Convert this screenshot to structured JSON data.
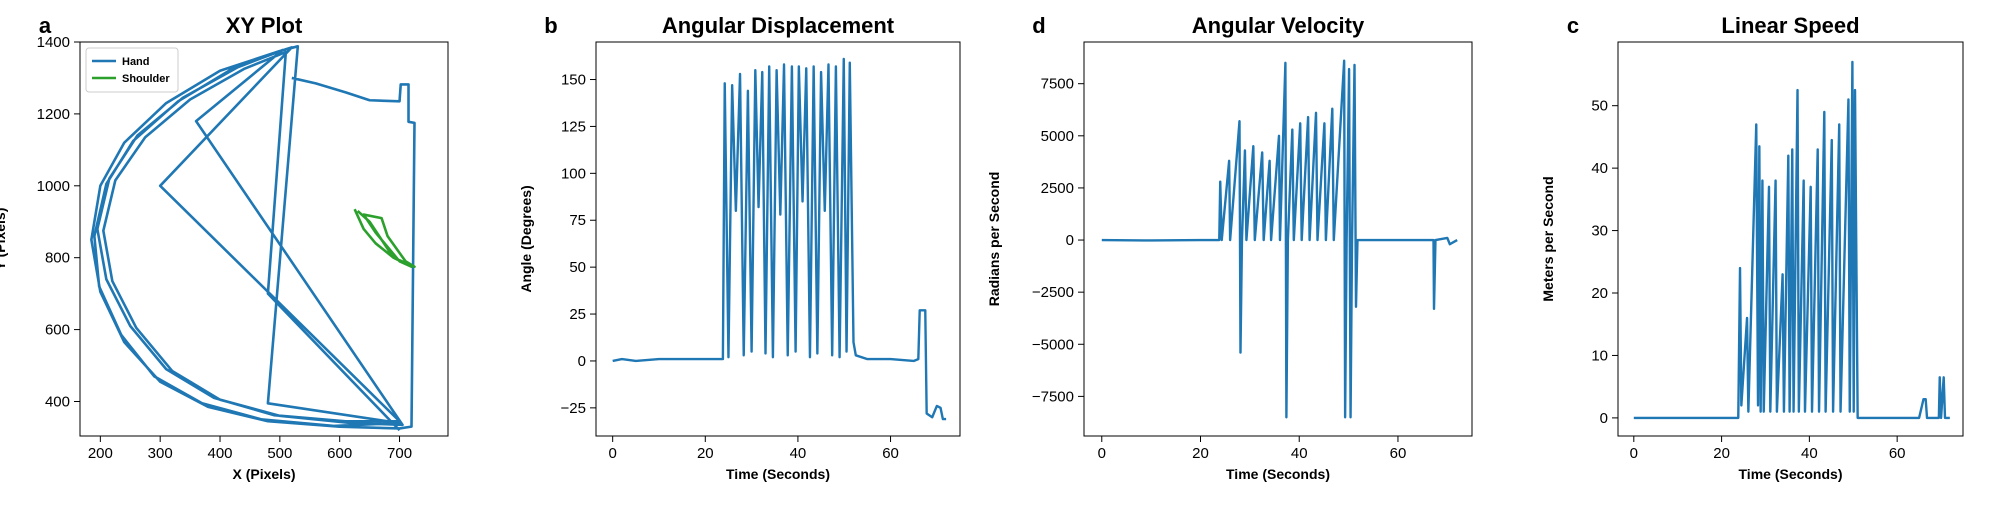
{
  "chart_data": [
    {
      "type": "line",
      "panel_label": "a",
      "title": "XY Plot",
      "x_label": "X (Pixels)",
      "y_label": "Y (Pixels)",
      "xlim": [
        166,
        781
      ],
      "ylim": [
        304,
        1400
      ],
      "xticks": [
        200,
        300,
        400,
        500,
        600,
        700
      ],
      "yticks": [
        400,
        600,
        800,
        1000,
        1200,
        1400
      ],
      "legend": "upper left",
      "series": [
        {
          "name": "Hand",
          "color": "#1f77b4",
          "x": [
            520,
            560,
            610,
            650,
            700,
            702,
            715,
            715,
            725,
            720,
            700,
            600,
            480,
            380,
            300,
            240,
            200,
            185,
            200,
            240,
            310,
            400,
            500,
            530,
            480,
            700,
            590,
            470,
            370,
            290,
            235,
            198,
            190,
            210,
            255,
            330,
            420,
            510,
            520,
            300,
            700,
            610,
            490,
            390,
            310,
            250,
            210,
            195,
            215,
            262,
            338,
            430,
            505,
            360,
            705,
            620,
            500,
            400,
            320,
            260,
            220,
            205,
            225,
            275,
            350,
            440,
            510,
            480,
            700
          ],
          "values": [
            1300,
            1285,
            1260,
            1238,
            1235,
            1282,
            1282,
            1178,
            1175,
            330,
            325,
            330,
            345,
            385,
            455,
            565,
            705,
            850,
            1000,
            1120,
            1230,
            1320,
            1375,
            1388,
            395,
            340,
            332,
            350,
            395,
            470,
            585,
            720,
            860,
            1005,
            1125,
            1235,
            1325,
            1380,
            1385,
            1000,
            345,
            345,
            362,
            410,
            490,
            610,
            740,
            880,
            1020,
            1140,
            1245,
            1330,
            1378,
            1180,
            335,
            340,
            360,
            405,
            485,
            605,
            735,
            875,
            1015,
            1135,
            1240,
            1325,
            1372,
            700,
            320
          ]
        },
        {
          "name": "Shoulder",
          "color": "#2ca02c",
          "x": [
            625,
            640,
            660,
            690,
            720,
            700,
            660,
            640,
            670,
            680,
            710,
            725,
            690,
            650,
            630
          ],
          "values": [
            935,
            880,
            840,
            800,
            775,
            790,
            870,
            920,
            910,
            860,
            790,
            775,
            800,
            900,
            930
          ]
        }
      ]
    },
    {
      "type": "line",
      "panel_label": "b",
      "title": "Angular Displacement",
      "x_label": "Time (Seconds)",
      "y_label": "Angle (Degrees)",
      "xlim": [
        -3.6,
        75
      ],
      "ylim": [
        -40,
        170
      ],
      "xticks": [
        0,
        20,
        40,
        60
      ],
      "yticks": [
        {
          "value": -25,
          "label": "−25"
        },
        0,
        25,
        50,
        75,
        100,
        125,
        150
      ],
      "color": "#1f77b4",
      "x": [
        0,
        2,
        5,
        10,
        15,
        20,
        23.8,
        24.2,
        25,
        25.8,
        26.6,
        27.5,
        28.3,
        29.2,
        30,
        30.8,
        31.5,
        32.3,
        33,
        33.8,
        34.6,
        35.4,
        36.2,
        37,
        37.8,
        38.7,
        39.5,
        40.2,
        41,
        41.8,
        42.6,
        43.4,
        44.2,
        45,
        45.8,
        46.6,
        47.4,
        48.2,
        49,
        49.9,
        50.5,
        51.2,
        52,
        52.5,
        55,
        60,
        65,
        66,
        66.3,
        67.5,
        67.8,
        69,
        70,
        70.8,
        71.3,
        72
      ],
      "values": [
        0,
        1,
        0,
        1,
        1,
        1,
        1,
        148,
        2,
        147,
        80,
        153,
        3,
        144,
        5,
        155,
        82,
        154,
        4,
        157,
        2,
        155,
        78,
        158,
        3,
        157,
        5,
        157,
        85,
        156,
        2,
        157,
        4,
        154,
        80,
        158,
        3,
        157,
        2,
        161,
        5,
        159,
        10,
        3,
        1,
        1,
        0,
        1,
        27,
        27,
        -28,
        -30,
        -24,
        -25,
        -31,
        -31
      ]
    },
    {
      "type": "line",
      "panel_label": "d",
      "title": "Angular Velocity",
      "x_label": "Time (Seconds)",
      "y_label": "Radians per Second",
      "xlim": [
        -3.6,
        75
      ],
      "ylim": [
        -9400,
        9500
      ],
      "xticks": [
        0,
        20,
        40,
        60
      ],
      "yticks": [
        {
          "value": -7500,
          "label": "−7500"
        },
        {
          "value": -5000,
          "label": "−5000"
        },
        {
          "value": -2500,
          "label": "−2500"
        },
        0,
        2500,
        5000,
        7500
      ],
      "color": "#1f77b4",
      "x": [
        0,
        10,
        20,
        23.8,
        24,
        24.3,
        25.8,
        26,
        27.9,
        28.1,
        28.4,
        29,
        29.3,
        30.7,
        31,
        32.5,
        32.8,
        34,
        34.3,
        35.9,
        36.1,
        37.2,
        37.4,
        37.7,
        38.6,
        38.9,
        40.2,
        40.5,
        41.8,
        42.1,
        43.4,
        43.7,
        45.1,
        45.4,
        46.7,
        47,
        49.1,
        49.3,
        49.6,
        50.1,
        50.4,
        50.7,
        51.2,
        51.5,
        51.8,
        55,
        60,
        66,
        67.2,
        67.3,
        67.6,
        70,
        70.5,
        72
      ],
      "values": [
        0,
        -20,
        0,
        0,
        2800,
        0,
        3800,
        0,
        5700,
        -5400,
        0,
        4300,
        0,
        4500,
        0,
        4200,
        0,
        3800,
        0,
        5000,
        0,
        8500,
        -8500,
        0,
        5300,
        0,
        5600,
        0,
        5900,
        0,
        6100,
        0,
        5600,
        0,
        6300,
        0,
        8600,
        -8500,
        0,
        8200,
        -8500,
        0,
        8400,
        -3200,
        0,
        0,
        0,
        0,
        0,
        -3300,
        0,
        100,
        -200,
        0
      ]
    },
    {
      "type": "line",
      "panel_label": "c",
      "title": "Linear Speed",
      "x_label": "Time (Seconds)",
      "y_label": "Meters per Second",
      "xlim": [
        -3.6,
        75
      ],
      "ylim": [
        -2.9,
        60.2
      ],
      "xticks": [
        0,
        20,
        40,
        60
      ],
      "yticks": [
        0,
        10,
        20,
        30,
        40,
        50
      ],
      "color": "#1f77b4",
      "x": [
        0,
        10,
        20,
        23.8,
        24.2,
        24.5,
        25.8,
        26.1,
        27.9,
        28.3,
        28.6,
        28.9,
        29.3,
        29.6,
        30.8,
        31.1,
        32.3,
        32.6,
        33.9,
        34.2,
        35.2,
        35.5,
        36.1,
        36.4,
        37.3,
        37.6,
        38.7,
        39,
        40.3,
        40.6,
        41.9,
        42.2,
        43.4,
        43.7,
        45.1,
        45.4,
        46.8,
        47.1,
        48.9,
        49.2,
        49.8,
        50.1,
        50.4,
        50.7,
        51,
        55,
        65,
        66,
        66.5,
        66.8,
        69.5,
        69.7,
        70,
        70.6,
        70.9,
        72
      ],
      "values": [
        0,
        0,
        0,
        0,
        24,
        2,
        16,
        1,
        47,
        2,
        43.5,
        1,
        38,
        1,
        37,
        1,
        38,
        1,
        23,
        1,
        42,
        1,
        43,
        1,
        52.5,
        1,
        38,
        1,
        37,
        1,
        43,
        1,
        49,
        1,
        44.5,
        1,
        47,
        1,
        51,
        1,
        57,
        1,
        52.5,
        26,
        0,
        0,
        0,
        3,
        3,
        0,
        0,
        6.5,
        0,
        6.5,
        0,
        0
      ]
    }
  ]
}
